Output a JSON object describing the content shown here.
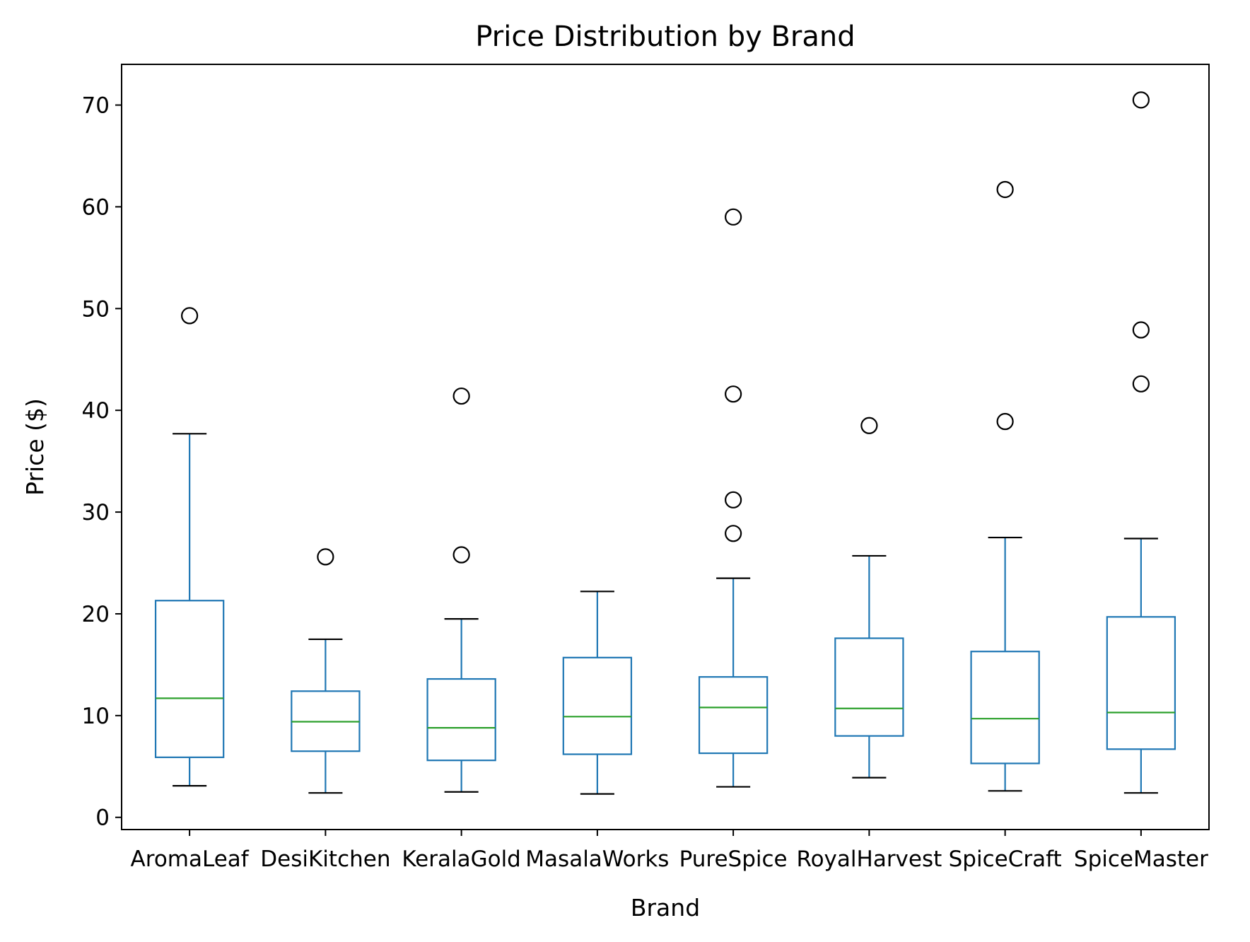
{
  "chart_data": {
    "type": "box",
    "title": "Price Distribution by Brand",
    "xlabel": "Brand",
    "ylabel": "Price ($)",
    "ylim": [
      -1.2,
      74
    ],
    "yticks": [
      0,
      10,
      20,
      30,
      40,
      50,
      60,
      70
    ],
    "ytick_labels": [
      "0",
      "10",
      "20",
      "30",
      "40",
      "50",
      "60",
      "70"
    ],
    "grid": false,
    "colors": {
      "box": "#1f77b4",
      "median": "#2ca02c",
      "flier": "#000000"
    },
    "categories": [
      "AromaLeaf",
      "DesiKitchen",
      "KeralaGold",
      "MasalaWorks",
      "PureSpice",
      "RoyalHarvest",
      "SpiceCraft",
      "SpiceMaster"
    ],
    "boxes": [
      {
        "whislo": 3.1,
        "q1": 5.9,
        "med": 11.7,
        "q3": 21.3,
        "whishi": 37.7,
        "fliers": [
          49.3
        ]
      },
      {
        "whislo": 2.4,
        "q1": 6.5,
        "med": 9.4,
        "q3": 12.4,
        "whishi": 17.5,
        "fliers": [
          25.6
        ]
      },
      {
        "whislo": 2.5,
        "q1": 5.6,
        "med": 8.8,
        "q3": 13.6,
        "whishi": 19.5,
        "fliers": [
          25.8,
          41.4
        ]
      },
      {
        "whislo": 2.3,
        "q1": 6.2,
        "med": 9.9,
        "q3": 15.7,
        "whishi": 22.2,
        "fliers": []
      },
      {
        "whislo": 3.0,
        "q1": 6.3,
        "med": 10.8,
        "q3": 13.8,
        "whishi": 23.5,
        "fliers": [
          27.9,
          31.2,
          41.6,
          59.0
        ]
      },
      {
        "whislo": 3.9,
        "q1": 8.0,
        "med": 10.7,
        "q3": 17.6,
        "whishi": 25.7,
        "fliers": [
          38.5
        ]
      },
      {
        "whislo": 2.6,
        "q1": 5.3,
        "med": 9.7,
        "q3": 16.3,
        "whishi": 27.5,
        "fliers": [
          38.9,
          61.7
        ]
      },
      {
        "whislo": 2.4,
        "q1": 6.7,
        "med": 10.3,
        "q3": 19.7,
        "whishi": 27.4,
        "fliers": [
          42.6,
          47.9,
          70.5
        ]
      }
    ]
  }
}
